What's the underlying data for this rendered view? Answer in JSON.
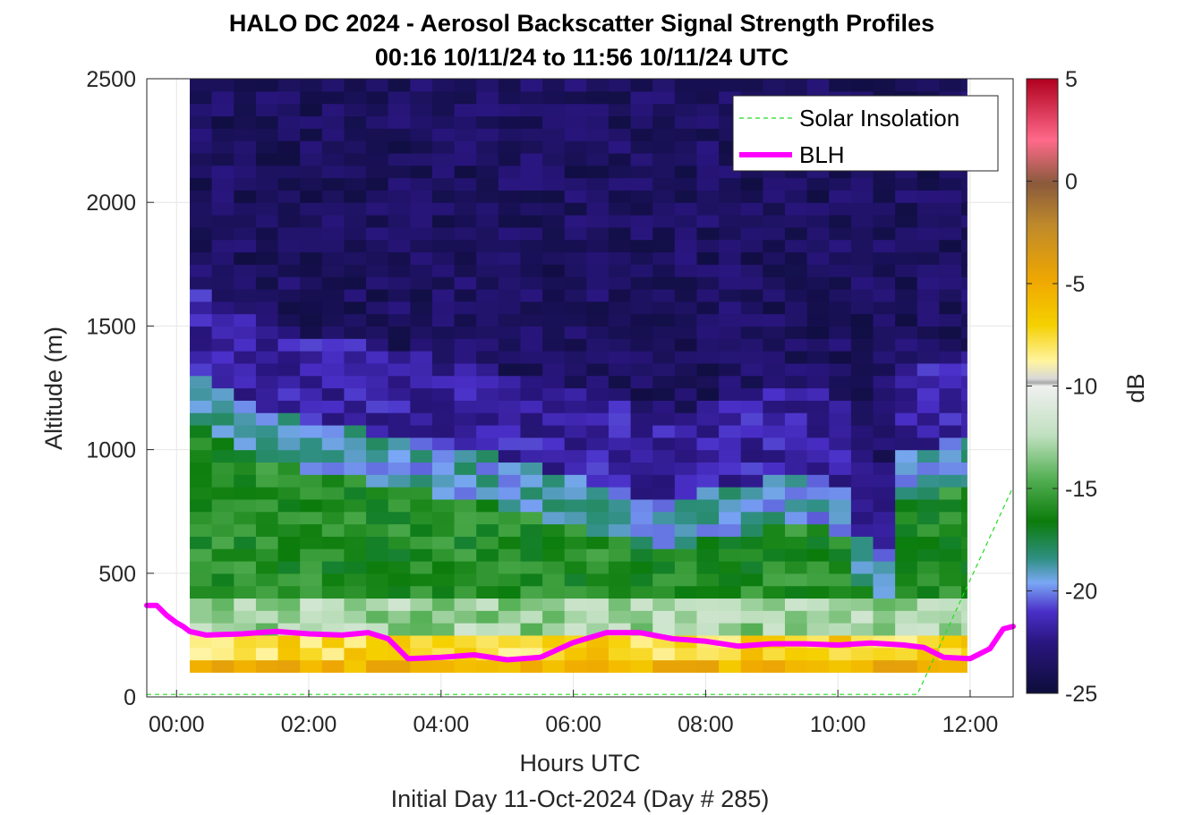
{
  "chart_data": {
    "type": "heatmap",
    "title": "HALO DC 2024 - Aerosol Backscatter Signal Strength Profiles",
    "subtitle": "00:16 10/11/24 to 11:56 10/11/24  UTC",
    "xlabel": "Hours UTC",
    "xlabel2": "Initial Day 11-Oct-2024 (Day # 285)",
    "ylabel": "Altitude (m)",
    "xlim": [
      -0.45,
      12.65
    ],
    "ylim": [
      0,
      2500
    ],
    "x_ticks": [
      0,
      2,
      4,
      6,
      8,
      10,
      12
    ],
    "x_tick_labels": [
      "00:00",
      "02:00",
      "04:00",
      "06:00",
      "08:00",
      "10:00",
      "12:00"
    ],
    "y_ticks": [
      0,
      500,
      1000,
      1500,
      2000,
      2500
    ],
    "y_tick_labels": [
      "0",
      "500",
      "1000",
      "1500",
      "2000",
      "2500"
    ],
    "grid": true,
    "colorbar": {
      "label": "dB",
      "range": [
        -25,
        5
      ],
      "ticks": [
        5,
        0,
        -5,
        -10,
        -15,
        -20,
        -25
      ],
      "tick_labels": [
        "5",
        "0",
        "-5",
        "-10",
        "-15",
        "-20",
        "-25"
      ]
    },
    "legend": {
      "location": "top-right",
      "entries": [
        {
          "label": "Solar Insolation",
          "color": "#22dd22",
          "style": "dashed"
        },
        {
          "label": "BLH",
          "color": "#ff00ff",
          "style": "solid"
        }
      ]
    },
    "heatmap": {
      "x_start": 0.2,
      "x_end": 11.95,
      "time_step_hours": 0.3333,
      "altitude_bin_m": 50,
      "altitude_min_m": 100,
      "altitude_max_m": 2500,
      "description_db": "near-surface 100-250 m about -6 to -9 dB; mid layer from surface to 600-1300 m about -14 to -17 dB (layer top falling after 10:00); free troposphere above about -22 to -25 dB"
    },
    "series": [
      {
        "name": "BLH",
        "color": "#ff00ff",
        "x": [
          -0.45,
          -0.3,
          -0.15,
          0.0,
          0.1,
          0.2,
          0.45,
          1.0,
          1.5,
          2.0,
          2.5,
          2.9,
          3.2,
          3.5,
          4.0,
          4.5,
          5.0,
          5.5,
          6.0,
          6.5,
          7.0,
          7.5,
          8.0,
          8.5,
          9.0,
          9.5,
          10.0,
          10.5,
          11.0,
          11.3,
          11.6,
          12.0,
          12.3,
          12.5,
          12.65
        ],
        "y": [
          370,
          370,
          330,
          300,
          285,
          265,
          250,
          255,
          265,
          255,
          250,
          260,
          235,
          155,
          160,
          170,
          150,
          160,
          220,
          260,
          260,
          235,
          225,
          205,
          215,
          215,
          210,
          218,
          210,
          200,
          160,
          155,
          195,
          275,
          285
        ]
      },
      {
        "name": "Solar Insolation",
        "color": "#22dd22",
        "x": [
          -0.45,
          11.2,
          12.65
        ],
        "y": [
          10,
          10,
          850
        ]
      }
    ]
  }
}
